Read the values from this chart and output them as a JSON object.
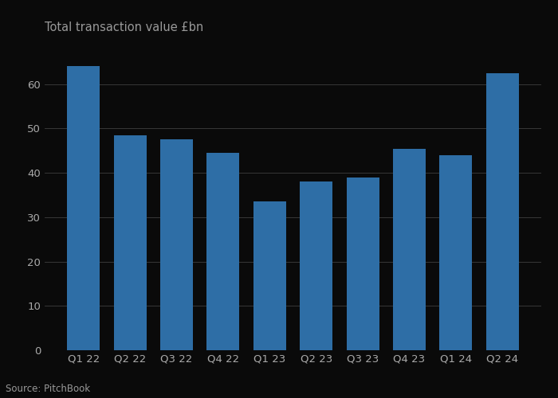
{
  "categories": [
    "Q1 22",
    "Q2 22",
    "Q3 22",
    "Q4 22",
    "Q1 23",
    "Q2 23",
    "Q3 23",
    "Q4 23",
    "Q1 24",
    "Q2 24"
  ],
  "values": [
    64,
    48.5,
    47.5,
    44.5,
    33.5,
    38,
    39,
    45.5,
    44,
    62.5
  ],
  "bar_color": "#2E6EA6",
  "title": "Total transaction value £bn",
  "source": "Source: PitchBook",
  "ylim": [
    0,
    70
  ],
  "yticks": [
    0,
    10,
    20,
    30,
    40,
    50,
    60
  ],
  "background_color": "#0a0a0a",
  "plot_bg_color": "#0a0a0a",
  "grid_color": "#555555",
  "text_color": "#999999",
  "axis_text_color": "#aaaaaa",
  "title_fontsize": 10.5,
  "source_fontsize": 8.5,
  "tick_fontsize": 9.5
}
